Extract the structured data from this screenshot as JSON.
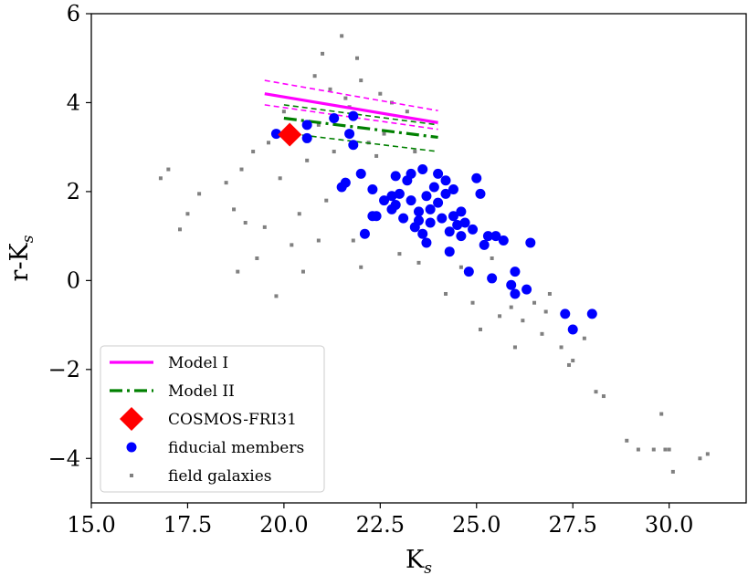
{
  "chart_data": {
    "type": "scatter",
    "xlabel_main": "K",
    "xlabel_sub": "s",
    "ylabel_main": "r-K",
    "ylabel_sub": "s",
    "xlim": [
      15.0,
      32.0
    ],
    "ylim": [
      -5.0,
      6.0
    ],
    "xticks": [
      15.0,
      17.5,
      20.0,
      22.5,
      25.0,
      27.5,
      30.0
    ],
    "xtick_labels": [
      "15.0",
      "17.5",
      "20.0",
      "22.5",
      "25.0",
      "27.5",
      "30.0"
    ],
    "yticks": [
      -4,
      -2,
      0,
      2,
      4,
      6
    ],
    "ytick_labels": [
      "−4",
      "−2",
      "0",
      "2",
      "4",
      "6"
    ],
    "grid": false,
    "legend_position": "lower-left",
    "legend": [
      {
        "label": "Model I",
        "kind": "solid-line",
        "color": "#ff00ff"
      },
      {
        "label": "Model II",
        "kind": "dashdot-line",
        "color": "#008000"
      },
      {
        "label": "COSMOS-FRI31",
        "kind": "diamond",
        "color": "#ff0000"
      },
      {
        "label": "fiducial members",
        "kind": "circle",
        "color": "#0000ff"
      },
      {
        "label": "field galaxies",
        "kind": "square",
        "color": "#808080"
      }
    ],
    "models": [
      {
        "name": "Model I",
        "color": "#ff00ff",
        "lines": [
          {
            "style": "solid",
            "x": [
              19.5,
              24.0
            ],
            "y": [
              4.2,
              3.55
            ]
          },
          {
            "style": "dashed",
            "x": [
              19.5,
              24.0
            ],
            "y": [
              4.5,
              3.82
            ]
          },
          {
            "style": "dashed",
            "x": [
              19.5,
              24.0
            ],
            "y": [
              3.95,
              3.4
            ]
          }
        ]
      },
      {
        "name": "Model II",
        "color": "#008000",
        "lines": [
          {
            "style": "dashdot",
            "x": [
              20.0,
              24.0
            ],
            "y": [
              3.65,
              3.22
            ]
          },
          {
            "style": "dashed",
            "x": [
              20.0,
              24.0
            ],
            "y": [
              3.95,
              3.5
            ]
          },
          {
            "style": "dashed",
            "x": [
              20.0,
              24.0
            ],
            "y": [
              3.32,
              2.9
            ]
          }
        ]
      }
    ],
    "cosmos_fri31": {
      "x": 20.15,
      "y": 3.28,
      "color": "#ff0000"
    },
    "fiducial_members": {
      "color": "#0000ff",
      "points": [
        [
          19.8,
          3.3
        ],
        [
          20.6,
          3.5
        ],
        [
          20.6,
          3.2
        ],
        [
          21.3,
          3.65
        ],
        [
          21.5,
          2.1
        ],
        [
          21.6,
          2.2
        ],
        [
          21.7,
          3.3
        ],
        [
          21.8,
          3.7
        ],
        [
          21.8,
          3.05
        ],
        [
          22.0,
          2.4
        ],
        [
          22.1,
          1.05
        ],
        [
          22.3,
          2.05
        ],
        [
          22.3,
          1.45
        ],
        [
          22.4,
          1.45
        ],
        [
          22.6,
          1.8
        ],
        [
          22.8,
          1.9
        ],
        [
          22.8,
          1.6
        ],
        [
          22.9,
          1.7
        ],
        [
          22.9,
          2.35
        ],
        [
          23.0,
          1.95
        ],
        [
          23.1,
          1.4
        ],
        [
          23.2,
          2.25
        ],
        [
          23.3,
          1.8
        ],
        [
          23.3,
          2.4
        ],
        [
          23.4,
          1.2
        ],
        [
          23.5,
          1.55
        ],
        [
          23.5,
          1.35
        ],
        [
          23.6,
          2.5
        ],
        [
          23.6,
          1.05
        ],
        [
          23.7,
          1.9
        ],
        [
          23.7,
          0.85
        ],
        [
          23.8,
          1.6
        ],
        [
          23.8,
          1.3
        ],
        [
          23.9,
          2.1
        ],
        [
          24.0,
          1.75
        ],
        [
          24.0,
          2.4
        ],
        [
          24.1,
          1.4
        ],
        [
          24.2,
          1.95
        ],
        [
          24.2,
          2.25
        ],
        [
          24.3,
          0.65
        ],
        [
          24.3,
          1.1
        ],
        [
          24.4,
          1.45
        ],
        [
          24.4,
          2.05
        ],
        [
          24.5,
          1.25
        ],
        [
          24.6,
          1.55
        ],
        [
          24.6,
          1.0
        ],
        [
          24.7,
          1.3
        ],
        [
          24.8,
          0.2
        ],
        [
          24.9,
          1.15
        ],
        [
          25.0,
          2.3
        ],
        [
          25.1,
          1.95
        ],
        [
          25.2,
          0.8
        ],
        [
          25.3,
          1.0
        ],
        [
          25.4,
          0.05
        ],
        [
          25.5,
          1.0
        ],
        [
          25.7,
          0.9
        ],
        [
          25.9,
          -0.1
        ],
        [
          26.0,
          -0.3
        ],
        [
          26.0,
          0.2
        ],
        [
          26.3,
          -0.2
        ],
        [
          26.4,
          0.85
        ],
        [
          27.3,
          -0.75
        ],
        [
          27.5,
          -1.1
        ],
        [
          28.0,
          -0.75
        ]
      ]
    },
    "field_galaxies": {
      "color": "#808080",
      "points": [
        [
          16.8,
          2.3
        ],
        [
          17.0,
          2.5
        ],
        [
          17.3,
          1.15
        ],
        [
          17.5,
          1.5
        ],
        [
          17.8,
          1.95
        ],
        [
          18.5,
          2.2
        ],
        [
          18.7,
          1.6
        ],
        [
          18.8,
          0.2
        ],
        [
          18.9,
          2.5
        ],
        [
          19.0,
          1.3
        ],
        [
          19.2,
          2.9
        ],
        [
          19.3,
          0.5
        ],
        [
          19.5,
          1.2
        ],
        [
          19.6,
          3.1
        ],
        [
          19.8,
          -0.35
        ],
        [
          19.9,
          2.3
        ],
        [
          20.0,
          3.8
        ],
        [
          20.2,
          0.8
        ],
        [
          20.4,
          1.5
        ],
        [
          20.5,
          0.2
        ],
        [
          20.6,
          2.7
        ],
        [
          20.8,
          4.6
        ],
        [
          20.9,
          3.5
        ],
        [
          21.0,
          5.1
        ],
        [
          21.2,
          4.3
        ],
        [
          21.3,
          2.9
        ],
        [
          21.5,
          5.5
        ],
        [
          21.6,
          4.1
        ],
        [
          21.7,
          3.9
        ],
        [
          21.9,
          5.0
        ],
        [
          22.0,
          4.5
        ],
        [
          22.2,
          3.1
        ],
        [
          22.5,
          4.2
        ],
        [
          22.8,
          4.0
        ],
        [
          23.2,
          3.8
        ],
        [
          22.4,
          2.8
        ],
        [
          22.6,
          3.3
        ],
        [
          23.4,
          2.9
        ],
        [
          23.5,
          0.4
        ],
        [
          23.0,
          0.6
        ],
        [
          24.2,
          -0.3
        ],
        [
          24.6,
          0.3
        ],
        [
          25.4,
          0.5
        ],
        [
          25.9,
          -0.6
        ],
        [
          26.2,
          -0.9
        ],
        [
          26.5,
          -0.5
        ],
        [
          26.7,
          -1.2
        ],
        [
          26.9,
          -0.3
        ],
        [
          27.2,
          -1.5
        ],
        [
          27.4,
          -1.9
        ],
        [
          27.5,
          -1.8
        ],
        [
          27.8,
          -1.3
        ],
        [
          28.1,
          -2.5
        ],
        [
          28.3,
          -2.6
        ],
        [
          28.9,
          -3.6
        ],
        [
          29.2,
          -3.8
        ],
        [
          29.6,
          -3.8
        ],
        [
          29.8,
          -3.0
        ],
        [
          29.9,
          -3.8
        ],
        [
          30.1,
          -4.3
        ],
        [
          30.0,
          -3.8
        ],
        [
          30.8,
          -4.0
        ],
        [
          31.0,
          -3.9
        ],
        [
          25.6,
          -0.8
        ],
        [
          25.1,
          -1.1
        ],
        [
          24.9,
          -0.5
        ],
        [
          26.8,
          -0.7
        ],
        [
          26.0,
          -1.5
        ],
        [
          22.0,
          0.3
        ],
        [
          21.8,
          0.9
        ],
        [
          21.1,
          1.8
        ],
        [
          20.9,
          0.9
        ]
      ]
    }
  }
}
